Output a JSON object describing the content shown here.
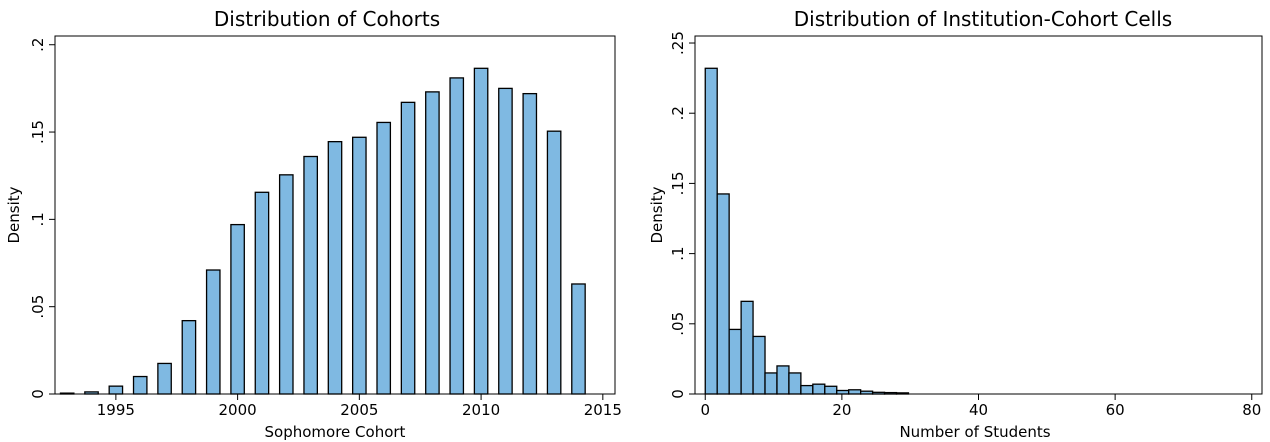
{
  "chart_data": [
    {
      "type": "bar",
      "title": "Distribution of Cohorts",
      "xlabel": "Sophomore Cohort",
      "ylabel": "Density",
      "xlim": [
        1992.5,
        2015.5
      ],
      "ylim": [
        0,
        0.205
      ],
      "xticks": [
        1995,
        2000,
        2005,
        2010,
        2015
      ],
      "xtick_labels": [
        "1995",
        "2000",
        "2005",
        "2010",
        "2015"
      ],
      "yticks": [
        0,
        0.05,
        0.1,
        0.15,
        0.2
      ],
      "ytick_labels": [
        "0",
        ".05",
        ".1",
        ".15",
        ".2"
      ],
      "bar_fill": "#7fb9e2",
      "bar_edge": "#000000",
      "grid": false,
      "x": [
        1993,
        1994,
        1995,
        1996,
        1997,
        1998,
        1999,
        2000,
        2001,
        2002,
        2003,
        2004,
        2005,
        2006,
        2007,
        2008,
        2009,
        2010,
        2011,
        2012,
        2013,
        2014
      ],
      "values": [
        0.0005,
        0.0012,
        0.0045,
        0.01,
        0.0175,
        0.042,
        0.071,
        0.097,
        0.1155,
        0.1255,
        0.136,
        0.1445,
        0.147,
        0.1555,
        0.167,
        0.173,
        0.181,
        0.1865,
        0.175,
        0.172,
        0.1505,
        0.063
      ]
    },
    {
      "type": "bar",
      "title": "Distribution of Institution-Cohort Cells",
      "xlabel": "Number of Students",
      "ylabel": "Density",
      "xlim": [
        -1.5,
        81.5
      ],
      "ylim": [
        0,
        0.255
      ],
      "xticks": [
        0,
        20,
        40,
        60,
        80
      ],
      "xtick_labels": [
        "0",
        "20",
        "40",
        "60",
        "80"
      ],
      "yticks": [
        0,
        0.05,
        0.1,
        0.15,
        0.2,
        0.25
      ],
      "ytick_labels": [
        "0",
        ".05",
        ".1",
        ".15",
        ".2",
        ".25"
      ],
      "bar_fill": "#7fb9e2",
      "bar_edge": "#000000",
      "grid": false,
      "bin_width": 1.75,
      "x": [
        0,
        1.75,
        3.5,
        5.25,
        7,
        8.75,
        10.5,
        12.25,
        14,
        15.75,
        17.5,
        19.25,
        21,
        22.75,
        24.5,
        26.25,
        28
      ],
      "values": [
        0.232,
        0.1425,
        0.046,
        0.066,
        0.041,
        0.015,
        0.02,
        0.015,
        0.006,
        0.007,
        0.0055,
        0.0025,
        0.003,
        0.002,
        0.0012,
        0.001,
        0.0008
      ]
    }
  ]
}
